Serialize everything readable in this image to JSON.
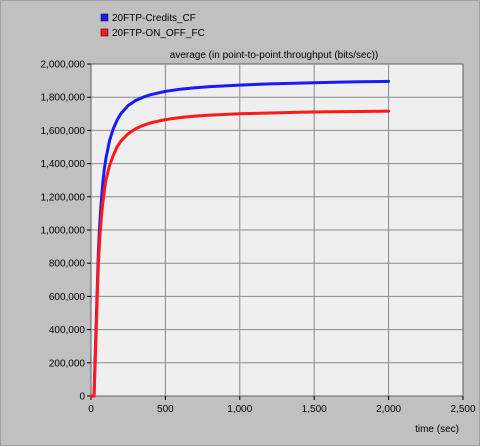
{
  "chart_data": {
    "type": "line",
    "title": "average (in point-to-point.throughput (bits/sec))",
    "xlabel": "time (sec)",
    "ylabel": "",
    "xlim": [
      0,
      2500
    ],
    "ylim": [
      0,
      2000000
    ],
    "x_ticks": [
      0,
      500,
      1000,
      1500,
      2000,
      2500
    ],
    "y_ticks": [
      0,
      200000,
      400000,
      600000,
      800000,
      1000000,
      1200000,
      1400000,
      1600000,
      1800000,
      2000000
    ],
    "x_tick_labels": [
      "0",
      "500",
      "1,000",
      "1,500",
      "2,000",
      "2,500"
    ],
    "y_tick_labels": [
      "0",
      "200,000",
      "400,000",
      "600,000",
      "800,000",
      "1,000,000",
      "1,200,000",
      "1,400,000",
      "1,600,000",
      "1,800,000",
      "2,000,000"
    ],
    "grid": true,
    "legend_position": "top-left",
    "background_color": "#efefef",
    "series": [
      {
        "name": "20FTP-Credits_CF",
        "color": "#1a1aff",
        "x": [
          0,
          20,
          30,
          40,
          50,
          60,
          70,
          80,
          90,
          100,
          125,
          150,
          175,
          200,
          250,
          300,
          350,
          400,
          500,
          600,
          700,
          800,
          1000,
          1200,
          1400,
          1600,
          1800,
          2000
        ],
        "y": [
          0,
          0,
          300000,
          600000,
          870000,
          1050000,
          1180000,
          1290000,
          1370000,
          1430000,
          1540000,
          1610000,
          1660000,
          1700000,
          1750000,
          1780000,
          1800000,
          1815000,
          1835000,
          1848000,
          1857000,
          1864000,
          1873000,
          1880000,
          1885000,
          1889000,
          1893000,
          1895000
        ]
      },
      {
        "name": "20FTP-ON_OFF_FC",
        "color": "#ff1a1a",
        "x": [
          0,
          20,
          30,
          40,
          50,
          60,
          70,
          80,
          90,
          100,
          125,
          150,
          175,
          200,
          250,
          300,
          350,
          400,
          500,
          600,
          700,
          800,
          1000,
          1200,
          1400,
          1600,
          1800,
          2000
        ],
        "y": [
          0,
          0,
          250000,
          550000,
          800000,
          960000,
          1080000,
          1170000,
          1240000,
          1300000,
          1390000,
          1450000,
          1500000,
          1535000,
          1580000,
          1610000,
          1630000,
          1645000,
          1665000,
          1678000,
          1686000,
          1692000,
          1700000,
          1705000,
          1709000,
          1712000,
          1714000,
          1716000
        ]
      }
    ]
  }
}
